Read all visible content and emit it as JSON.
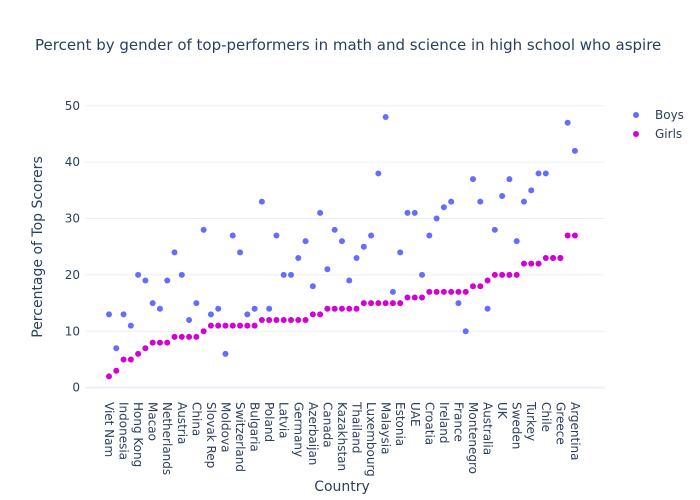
{
  "chart_data": {
    "type": "scatter",
    "title": "Percent by gender of top-performers in math and science in high school who aspire",
    "x_label": "Country",
    "y_label": "Percentage of Top Scorers",
    "categories": [
      "Viet Nam",
      null,
      "Indonesia",
      null,
      "Hong Kong",
      null,
      "Macao",
      null,
      "Netherlands",
      null,
      "Austria",
      null,
      "China",
      null,
      "Slovak Rep",
      null,
      "Moldova",
      null,
      "Switzerland",
      null,
      "Bulgaria",
      null,
      "Poland",
      null,
      "Latvia",
      null,
      "Germany",
      null,
      "Azerbaijan",
      null,
      "Canada",
      null,
      "Kazakhstan",
      null,
      "Thailand",
      null,
      "Luxembourg",
      null,
      "Malaysia",
      null,
      "Estonia",
      null,
      "UAE",
      null,
      "Croatia",
      null,
      "Ireland",
      null,
      "France",
      null,
      "Montenegro",
      null,
      "Australia",
      null,
      "UK",
      null,
      "Sweden",
      null,
      "Turkey",
      null,
      "Chile",
      null,
      "Greece",
      null,
      "Argentina"
    ],
    "series": [
      {
        "name": "Boys",
        "color": "#636efa",
        "values": [
          13,
          7,
          13,
          11,
          20,
          19,
          15,
          14,
          19,
          24,
          20,
          12,
          15,
          28,
          13,
          14,
          6,
          27,
          24,
          13,
          14,
          33,
          14,
          27,
          20,
          20,
          23,
          26,
          18,
          31,
          21,
          28,
          26,
          19,
          23,
          25,
          27,
          38,
          48,
          17,
          24,
          31,
          31,
          20,
          27,
          30,
          32,
          33,
          15,
          10,
          37,
          33,
          14,
          28,
          34,
          37,
          26,
          33,
          35,
          38,
          38,
          23,
          23,
          47,
          42
        ]
      },
      {
        "name": "Girls",
        "color": "#d400d4",
        "values": [
          2,
          3,
          5,
          5,
          6,
          7,
          8,
          8,
          8,
          9,
          9,
          9,
          9,
          10,
          11,
          11,
          11,
          11,
          11,
          11,
          11,
          12,
          12,
          12,
          12,
          12,
          12,
          12,
          13,
          13,
          14,
          14,
          14,
          14,
          14,
          15,
          15,
          15,
          15,
          15,
          15,
          16,
          16,
          16,
          17,
          17,
          17,
          17,
          17,
          17,
          18,
          18,
          19,
          20,
          20,
          20,
          20,
          22,
          22,
          22,
          23,
          23,
          23,
          27,
          27
        ]
      }
    ],
    "ylim": [
      -1.3,
      52.8
    ],
    "yticks": [
      0,
      10,
      20,
      30,
      40,
      50
    ],
    "grid": true,
    "legend": "top right"
  }
}
